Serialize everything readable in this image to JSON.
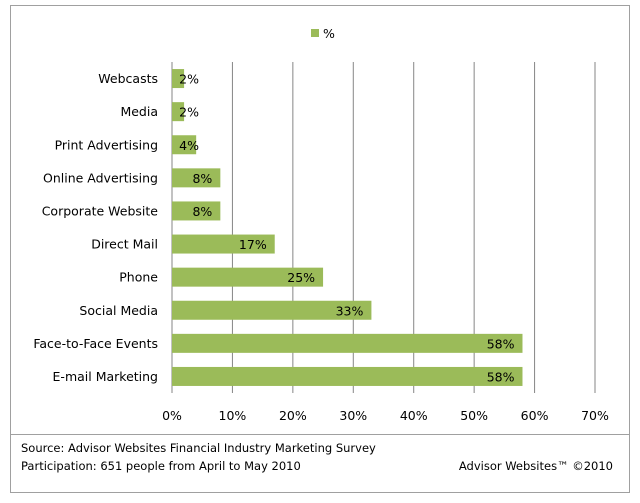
{
  "chart_data": {
    "type": "bar",
    "orientation": "horizontal",
    "title": "",
    "legend": {
      "entries": [
        "%"
      ],
      "placement": "top-center"
    },
    "categories": [
      "Webcasts",
      "Media",
      "Print Advertising",
      "Online Advertising",
      "Corporate Website",
      "Direct Mail",
      "Phone",
      "Social Media",
      "Face-to-Face Events",
      "E-mail Marketing"
    ],
    "values": [
      2,
      2,
      4,
      8,
      8,
      17,
      25,
      33,
      58,
      58
    ],
    "data_labels": [
      "2%",
      "2%",
      "4%",
      "8%",
      "8%",
      "17%",
      "25%",
      "33%",
      "58%",
      "58%"
    ],
    "xlim": [
      0,
      70
    ],
    "xticks": [
      "0%",
      "10%",
      "20%",
      "30%",
      "40%",
      "50%",
      "60%",
      "70%"
    ],
    "grid": true,
    "bar_color": "#9bbb59",
    "xlabel": "",
    "ylabel": ""
  },
  "footer": {
    "source": "Source: Advisor Websites Financial Industry Marketing Survey",
    "participation": "Participation: 651 people from April to May 2010",
    "copyright": "Advisor Websites™ ©2010"
  }
}
